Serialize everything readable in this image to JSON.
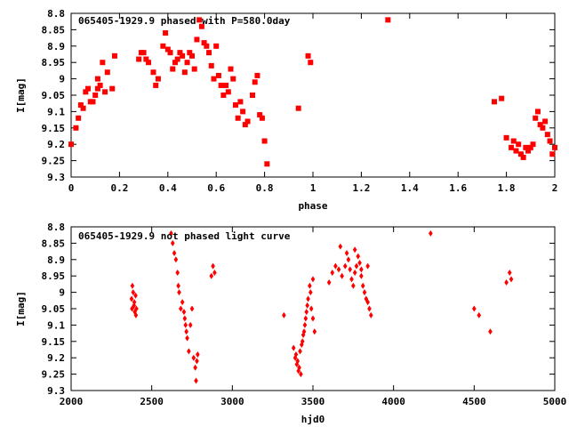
{
  "chart_data": [
    {
      "type": "scatter",
      "title": "065405-1929.9 phased with P=580.0day",
      "xlabel": "phase",
      "ylabel": "I[mag]",
      "xlim": [
        0,
        2
      ],
      "ylim": [
        9.3,
        8.8
      ],
      "y_inverted": true,
      "x_ticks": [
        "0",
        "0.2",
        "0.4",
        "0.6",
        "0.8",
        "1",
        "1.2",
        "1.4",
        "1.6",
        "1.8",
        "2"
      ],
      "y_ticks": [
        "8.8",
        "8.85",
        "8.9",
        "8.95",
        "9",
        "9.05",
        "9.1",
        "9.15",
        "9.2",
        "9.25",
        "9.3"
      ],
      "marker": "square",
      "color": "#ff0000",
      "x": [
        0.0,
        0.02,
        0.03,
        0.04,
        0.05,
        0.06,
        0.07,
        0.08,
        0.09,
        0.1,
        0.11,
        0.11,
        0.12,
        0.13,
        0.14,
        0.15,
        0.17,
        0.18,
        0.28,
        0.29,
        0.3,
        0.31,
        0.32,
        0.34,
        0.35,
        0.36,
        0.38,
        0.39,
        0.4,
        0.41,
        0.42,
        0.43,
        0.44,
        0.45,
        0.46,
        0.47,
        0.48,
        0.49,
        0.5,
        0.51,
        0.52,
        0.53,
        0.54,
        0.55,
        0.56,
        0.57,
        0.58,
        0.59,
        0.6,
        0.61,
        0.62,
        0.63,
        0.64,
        0.65,
        0.66,
        0.67,
        0.68,
        0.69,
        0.7,
        0.71,
        0.72,
        0.73,
        0.75,
        0.76,
        0.77,
        0.78,
        0.79,
        0.8,
        0.81,
        0.94,
        0.98,
        0.99,
        1.31,
        1.75,
        1.78,
        1.8,
        1.82,
        1.83,
        1.84,
        1.85,
        1.86,
        1.87,
        1.88,
        1.89,
        1.9,
        1.91,
        1.92,
        1.93,
        1.94,
        1.95,
        1.96,
        1.97,
        1.98,
        1.99,
        2.0
      ],
      "y": [
        9.2,
        9.15,
        9.12,
        9.08,
        9.09,
        9.04,
        9.03,
        9.07,
        9.07,
        9.05,
        9.03,
        9.0,
        9.02,
        8.95,
        9.04,
        8.98,
        9.03,
        8.93,
        8.94,
        8.92,
        8.92,
        8.94,
        8.95,
        8.98,
        9.02,
        9.0,
        8.9,
        8.86,
        8.91,
        8.92,
        8.97,
        8.95,
        8.94,
        8.92,
        8.93,
        8.98,
        8.95,
        8.92,
        8.93,
        8.97,
        8.88,
        8.82,
        8.84,
        8.89,
        8.9,
        8.92,
        8.96,
        9.0,
        8.9,
        8.99,
        9.02,
        9.05,
        9.02,
        9.04,
        8.97,
        9.0,
        9.08,
        9.12,
        9.07,
        9.1,
        9.14,
        9.13,
        9.05,
        9.01,
        8.99,
        9.11,
        9.12,
        9.19,
        9.26,
        9.09,
        8.93,
        8.95,
        8.82,
        9.07,
        9.06,
        9.18,
        9.21,
        9.19,
        9.22,
        9.2,
        9.23,
        9.24,
        9.21,
        9.22,
        9.21,
        9.2,
        9.12,
        9.1,
        9.14,
        9.15,
        9.13,
        9.17,
        9.19,
        9.23,
        9.21
      ],
      "grid": false
    },
    {
      "type": "scatter",
      "title": "065405-1929.9 not phased light curve",
      "xlabel": "hjd0",
      "ylabel": "I[mag]",
      "xlim": [
        2000,
        5000
      ],
      "ylim": [
        9.3,
        8.8
      ],
      "y_inverted": true,
      "x_ticks": [
        "2000",
        "2500",
        "3000",
        "3500",
        "4000",
        "4500",
        "5000"
      ],
      "y_ticks": [
        "8.8",
        "8.85",
        "8.9",
        "8.95",
        "9",
        "9.05",
        "9.1",
        "9.15",
        "9.2",
        "9.25",
        "9.3"
      ],
      "marker": "diamond",
      "color": "#ff0000",
      "x": [
        2375,
        2380,
        2385,
        2390,
        2395,
        2400,
        2405,
        2378,
        2392,
        2402,
        2620,
        2630,
        2640,
        2650,
        2660,
        2665,
        2670,
        2680,
        2690,
        2700,
        2705,
        2710,
        2715,
        2720,
        2730,
        2740,
        2750,
        2760,
        2770,
        2775,
        2780,
        2785,
        2870,
        2880,
        2890,
        3320,
        3380,
        3390,
        3400,
        3410,
        3420,
        3430,
        3440,
        3450,
        3460,
        3470,
        3480,
        3490,
        3500,
        3510,
        3395,
        3405,
        3415,
        3425,
        3435,
        3445,
        3455,
        3465,
        3485,
        3500,
        3600,
        3620,
        3640,
        3660,
        3680,
        3700,
        3720,
        3730,
        3740,
        3750,
        3760,
        3770,
        3780,
        3790,
        3800,
        3810,
        3820,
        3830,
        3840,
        3850,
        3860,
        3670,
        3710,
        3760,
        3800,
        3840,
        4230,
        4500,
        4530,
        4600,
        4700,
        4720,
        4730
      ],
      "y": [
        9.02,
        8.98,
        9.0,
        9.04,
        9.06,
        9.01,
        9.05,
        9.05,
        9.03,
        9.07,
        8.82,
        8.85,
        8.88,
        8.9,
        8.94,
        8.98,
        9.0,
        9.05,
        9.03,
        9.06,
        9.08,
        9.1,
        9.12,
        9.14,
        9.18,
        9.1,
        9.05,
        9.2,
        9.23,
        9.27,
        9.21,
        9.19,
        8.95,
        8.92,
        8.94,
        9.07,
        9.17,
        9.2,
        9.22,
        9.24,
        9.18,
        9.16,
        9.13,
        9.1,
        9.06,
        9.02,
        8.98,
        9.05,
        9.08,
        9.12,
        9.19,
        9.21,
        9.23,
        9.25,
        9.15,
        9.12,
        9.08,
        9.04,
        9.0,
        8.96,
        8.97,
        8.94,
        8.92,
        8.93,
        8.95,
        8.92,
        8.9,
        8.93,
        8.96,
        8.98,
        8.94,
        8.92,
        8.89,
        8.91,
        8.95,
        8.98,
        9.0,
        9.02,
        9.03,
        9.05,
        9.07,
        8.86,
        8.88,
        8.87,
        8.93,
        8.92,
        8.82,
        9.05,
        9.07,
        9.12,
        8.97,
        8.94,
        8.96
      ],
      "grid": false
    }
  ]
}
